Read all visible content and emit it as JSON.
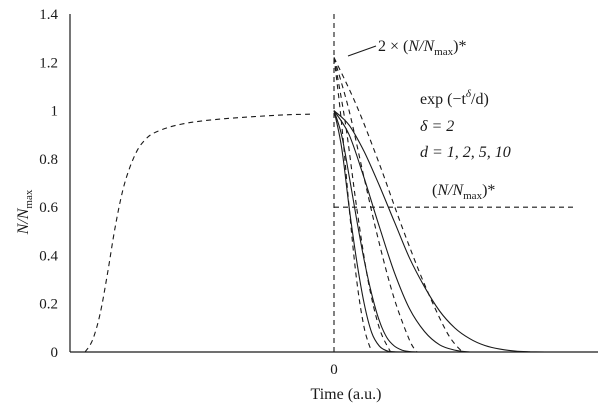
{
  "chart_data": {
    "type": "line",
    "title": "",
    "xlabel": "Time (a.u.)",
    "ylabel": {
      "base": "N/N",
      "sub": "max"
    },
    "ylim": [
      0,
      1.4
    ],
    "y_ticks": [
      "0",
      "0.2",
      "0.4",
      "0.6",
      "0.8",
      "1",
      "1.2",
      "1.4"
    ],
    "x_ticks": [
      {
        "x": 0,
        "label": "0"
      }
    ],
    "xlim": [
      -3.5,
      3.5
    ],
    "growth_curve": {
      "style": "dashed",
      "x": [
        -3.3,
        -3.2,
        -3.1,
        -3.0,
        -2.9,
        -2.8,
        -2.7,
        -2.6,
        -2.5,
        -2.4,
        -2.2,
        -2.0,
        -1.8,
        -1.5,
        -1.2,
        -0.9,
        -0.6,
        -0.3
      ],
      "y": [
        0,
        0.05,
        0.16,
        0.33,
        0.52,
        0.67,
        0.77,
        0.84,
        0.88,
        0.905,
        0.93,
        0.945,
        0.955,
        0.965,
        0.972,
        0.978,
        0.983,
        0.985
      ]
    },
    "decay_series": [
      {
        "d": 1,
        "peak": 1,
        "x": [
          0,
          0.1,
          0.2,
          0.3,
          0.4,
          0.5,
          0.6,
          0.7,
          0.8,
          0.9
        ],
        "y": [
          1,
          0.85,
          0.6,
          0.38,
          0.2,
          0.08,
          0.025,
          0.005,
          0.001,
          0
        ]
      },
      {
        "d": 2,
        "peak": 1,
        "x": [
          0,
          0.1,
          0.2,
          0.3,
          0.4,
          0.5,
          0.6,
          0.7,
          0.8,
          0.9,
          1.0,
          1.1
        ],
        "y": [
          1,
          0.9,
          0.73,
          0.55,
          0.38,
          0.24,
          0.13,
          0.06,
          0.025,
          0.008,
          0.002,
          0
        ]
      },
      {
        "d": 5,
        "peak": 1,
        "x": [
          0,
          0.2,
          0.4,
          0.6,
          0.8,
          1.0,
          1.2,
          1.4,
          1.6,
          1.8
        ],
        "y": [
          1,
          0.9,
          0.72,
          0.52,
          0.33,
          0.18,
          0.085,
          0.03,
          0.008,
          0
        ]
      },
      {
        "d": 10,
        "peak": 1,
        "x": [
          0,
          0.2,
          0.4,
          0.6,
          0.8,
          1.0,
          1.2,
          1.4,
          1.6,
          1.8,
          2.0,
          2.2,
          2.4,
          2.6,
          2.8
        ],
        "y": [
          1,
          0.94,
          0.83,
          0.69,
          0.54,
          0.39,
          0.27,
          0.17,
          0.1,
          0.055,
          0.027,
          0.012,
          0.004,
          0.001,
          0
        ]
      }
    ],
    "doubled_series": [
      {
        "d": 1,
        "x": [
          0,
          0.1,
          0.2,
          0.3,
          0.4,
          0.5
        ],
        "y": [
          1.22,
          0.95,
          0.6,
          0.3,
          0.1,
          0
        ]
      },
      {
        "d": 2,
        "x": [
          0,
          0.15,
          0.3,
          0.45,
          0.6,
          0.75
        ],
        "y": [
          1.22,
          0.95,
          0.6,
          0.3,
          0.1,
          0
        ]
      },
      {
        "d": 5,
        "x": [
          0,
          0.2,
          0.4,
          0.6,
          0.8,
          1.0,
          1.1
        ],
        "y": [
          1.22,
          1.0,
          0.72,
          0.45,
          0.22,
          0.05,
          0
        ]
      },
      {
        "d": 10,
        "x": [
          0,
          0.3,
          0.6,
          0.9,
          1.2,
          1.5,
          1.7
        ],
        "y": [
          1.22,
          1.02,
          0.78,
          0.52,
          0.28,
          0.08,
          0
        ]
      }
    ],
    "threshold": {
      "style": "dashed",
      "y": 0.6,
      "x_start": 0,
      "x_end": 3.2
    },
    "vertical_marker": {
      "style": "dashed",
      "x": 0
    },
    "annotations": {
      "doubled": {
        "prefix": "2 × (",
        "base": "N/N",
        "sub": "max",
        "suffix": ")*"
      },
      "threshold": {
        "prefix": "(",
        "base": "N/N",
        "sub": "max",
        "suffix": ")*"
      },
      "formula": {
        "prefix": "exp (−t",
        "sup": "δ",
        "suffix": "/d)"
      },
      "delta": "δ = 2",
      "d_values": "d = 1, 2, 5, 10"
    }
  }
}
